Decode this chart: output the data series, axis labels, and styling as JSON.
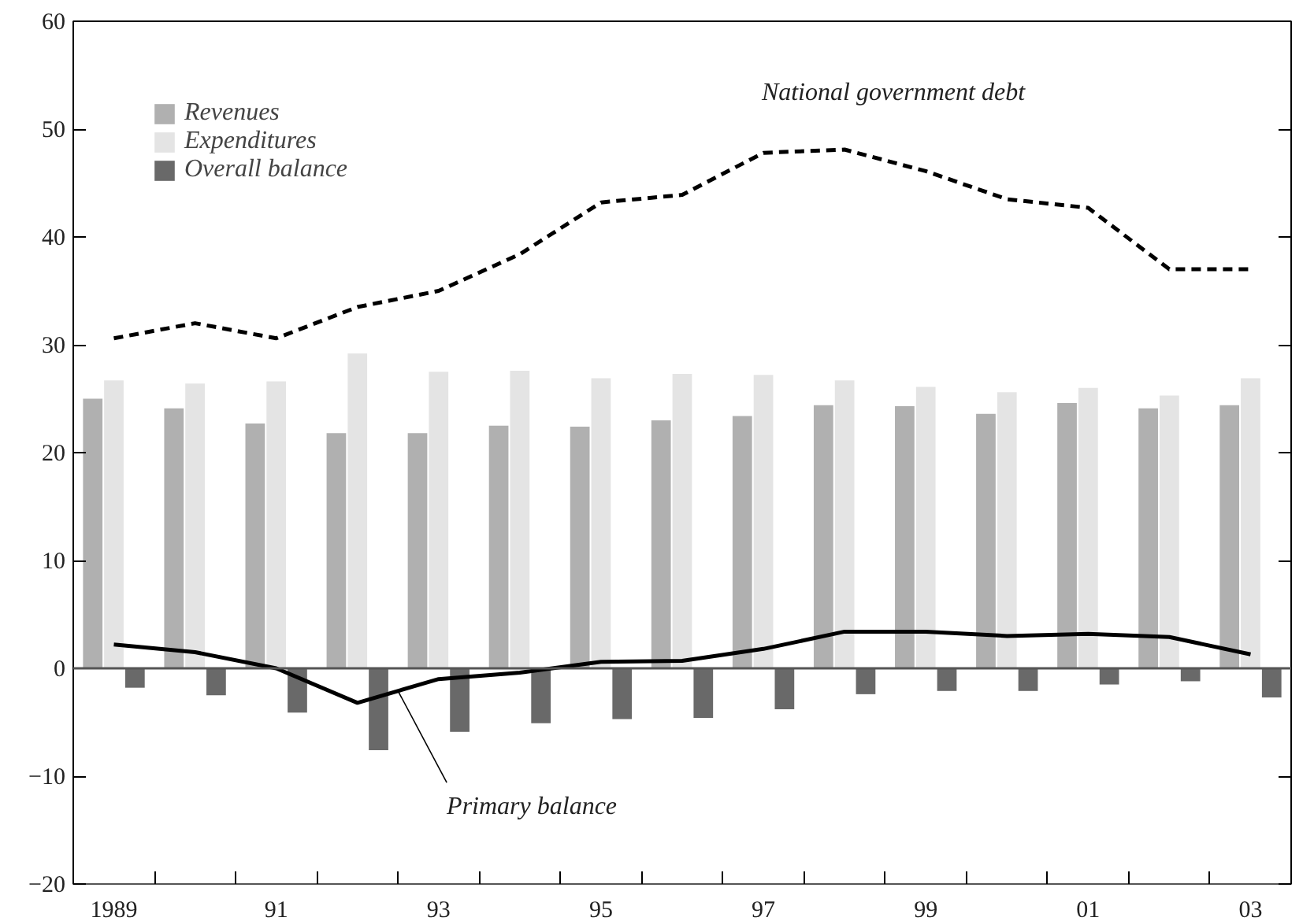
{
  "chart_data": {
    "type": "bar",
    "categories": [
      "1989",
      null,
      "91",
      null,
      "93",
      null,
      "95",
      null,
      "97",
      null,
      "99",
      null,
      "01",
      null,
      "03"
    ],
    "series": [
      {
        "name": "Revenues",
        "color": "#b0b0b0",
        "values": [
          25.0,
          24.1,
          22.7,
          21.8,
          21.8,
          22.5,
          22.4,
          23.0,
          23.4,
          24.4,
          24.3,
          23.6,
          24.6,
          24.1,
          24.4
        ]
      },
      {
        "name": "Expenditures",
        "color": "#e4e4e4",
        "values": [
          26.7,
          26.4,
          26.6,
          29.2,
          27.5,
          27.6,
          26.9,
          27.3,
          27.2,
          26.7,
          26.1,
          25.6,
          26.0,
          25.3,
          26.9
        ]
      },
      {
        "name": "Overall balance",
        "color": "#696969",
        "values": [
          -1.8,
          -2.5,
          -4.1,
          -7.6,
          -5.9,
          -5.1,
          -4.7,
          -4.6,
          -3.8,
          -2.4,
          -2.1,
          -2.1,
          -1.5,
          -1.2,
          -2.7
        ]
      },
      {
        "name": "National government debt",
        "type": "line",
        "line_style": "dashed",
        "color": "#000000",
        "values": [
          30.6,
          32.0,
          30.6,
          33.5,
          35.0,
          38.4,
          43.2,
          43.9,
          47.8,
          48.1,
          46.1,
          43.5,
          42.7,
          37.0,
          37.0
        ]
      },
      {
        "name": "Primary balance",
        "type": "line",
        "line_style": "solid",
        "color": "#000000",
        "values": [
          2.2,
          1.5,
          0.0,
          -3.2,
          -1.0,
          -0.4,
          0.6,
          0.7,
          1.8,
          3.4,
          3.4,
          3.0,
          3.2,
          2.9,
          1.3
        ]
      }
    ],
    "ylim": [
      -20,
      60
    ],
    "yticks": [
      -20,
      -10,
      0,
      10,
      20,
      30,
      40,
      50,
      60
    ],
    "ref_lines": [
      {
        "axis": "y",
        "value": 0,
        "color": "#555555"
      }
    ],
    "legend": "top left",
    "grid": false
  }
}
